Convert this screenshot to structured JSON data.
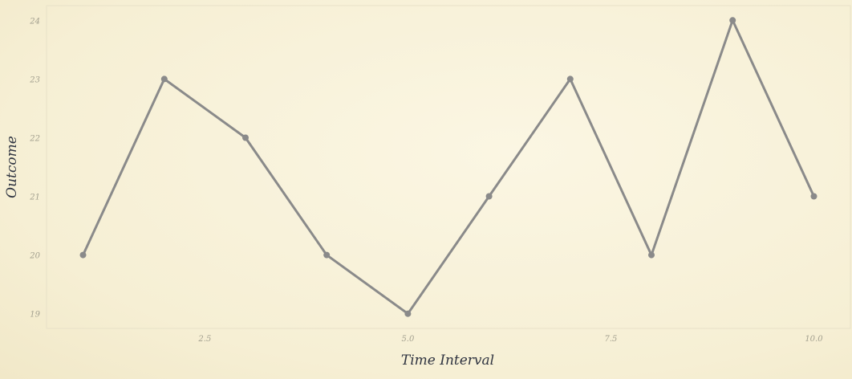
{
  "chart_data": {
    "type": "line",
    "title": "",
    "xlabel": "Time Interval",
    "ylabel": "Outcome",
    "x": [
      1,
      2,
      3,
      4,
      5,
      6,
      7,
      8,
      9,
      10
    ],
    "series": [
      {
        "values": [
          20,
          23,
          22,
          20,
          19,
          21,
          23,
          20,
          24,
          21
        ]
      }
    ],
    "x_ticks": [
      2.5,
      5.0,
      7.5,
      10.0
    ],
    "x_tick_labels": [
      "2.5",
      "5.0",
      "7.5",
      "10.0"
    ],
    "y_ticks": [
      19,
      20,
      21,
      22,
      23,
      24
    ],
    "y_tick_labels": [
      "19",
      "20",
      "21",
      "22",
      "23",
      "24"
    ],
    "xlim": [
      0.55,
      10.45
    ],
    "ylim": [
      18.75,
      24.25
    ],
    "grid": false,
    "legend": "none",
    "line_color": "#8a8a8a",
    "background_color": "#f8f2da"
  }
}
